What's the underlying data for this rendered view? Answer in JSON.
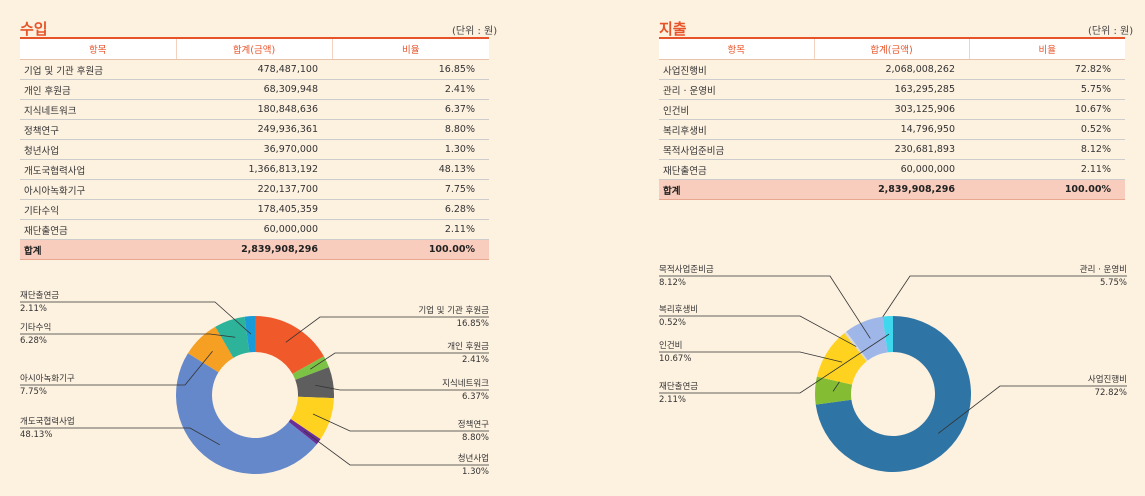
{
  "income": {
    "title": "수입",
    "unit": "(단위 : 원)",
    "headers": [
      "항목",
      "합계(금액)",
      "비율"
    ],
    "rows": [
      {
        "item": "기업 및 기관 후원금",
        "amount": "478,487,100",
        "ratio": "16.85%"
      },
      {
        "item": "개인 후원금",
        "amount": "68,309,948",
        "ratio": "2.41%"
      },
      {
        "item": "지식네트워크",
        "amount": "180,848,636",
        "ratio": "6.37%"
      },
      {
        "item": "정책연구",
        "amount": "249,936,361",
        "ratio": "8.80%"
      },
      {
        "item": "청년사업",
        "amount": "36,970,000",
        "ratio": "1.30%"
      },
      {
        "item": "개도국협력사업",
        "amount": "1,366,813,192",
        "ratio": "48.13%"
      },
      {
        "item": "아시아녹화기구",
        "amount": "220,137,700",
        "ratio": "7.75%"
      },
      {
        "item": "기타수익",
        "amount": "178,405,359",
        "ratio": "6.28%"
      },
      {
        "item": "재단출연금",
        "amount": "60,000,000",
        "ratio": "2.11%"
      }
    ],
    "total": {
      "item": "합계",
      "amount": "2,839,908,296",
      "ratio": "100.00%"
    }
  },
  "expense": {
    "title": "지출",
    "unit": "(단위 : 원)",
    "headers": [
      "항목",
      "합계(금액)",
      "비율"
    ],
    "rows": [
      {
        "item": "사업진행비",
        "amount": "2,068,008,262",
        "ratio": "72.82%"
      },
      {
        "item": "관리 · 운영비",
        "amount": "163,295,285",
        "ratio": "5.75%"
      },
      {
        "item": "인건비",
        "amount": "303,125,906",
        "ratio": "10.67%"
      },
      {
        "item": "복리후생비",
        "amount": "14,796,950",
        "ratio": "0.52%"
      },
      {
        "item": "목적사업준비금",
        "amount": "230,681,893",
        "ratio": "8.12%"
      },
      {
        "item": "재단출연금",
        "amount": "60,000,000",
        "ratio": "2.11%"
      }
    ],
    "total": {
      "item": "합계",
      "amount": "2,839,908,296",
      "ratio": "100.00%"
    }
  },
  "chart_data": [
    {
      "type": "pie",
      "categories": [
        "기업 및 기관 후원금",
        "개인 후원금",
        "지식네트워크",
        "정책연구",
        "청년사업",
        "개도국협력사업",
        "아시아녹화기구",
        "기타수익",
        "재단출연금"
      ],
      "values": [
        16.85,
        2.41,
        6.37,
        8.8,
        1.3,
        48.13,
        7.75,
        6.28,
        2.11
      ],
      "labels": [
        "16.85%",
        "2.41%",
        "6.37%",
        "8.80%",
        "1.30%",
        "48.13%",
        "7.75%",
        "6.28%",
        "2.11%"
      ],
      "colors": [
        "#f0592a",
        "#7cc245",
        "#5e5e5e",
        "#ffd21f",
        "#6a2e9a",
        "#6488c9",
        "#f6a023",
        "#2cb39a",
        "#1a9ad6"
      ],
      "donut": true
    },
    {
      "type": "pie",
      "categories": [
        "사업진행비",
        "관리 · 운영비",
        "인건비",
        "복리후생비",
        "목적사업준비금",
        "재단출연금"
      ],
      "values": [
        72.82,
        5.75,
        10.67,
        0.52,
        8.12,
        2.11
      ],
      "labels": [
        "72.82%",
        "5.75%",
        "10.67%",
        "0.52%",
        "8.12%",
        "2.11%"
      ],
      "colors": [
        "#2e74a4",
        "#84bd33",
        "#ffd21f",
        "#d9d9d9",
        "#9fb6e8",
        "#3ed7ee"
      ],
      "donut": true
    }
  ]
}
